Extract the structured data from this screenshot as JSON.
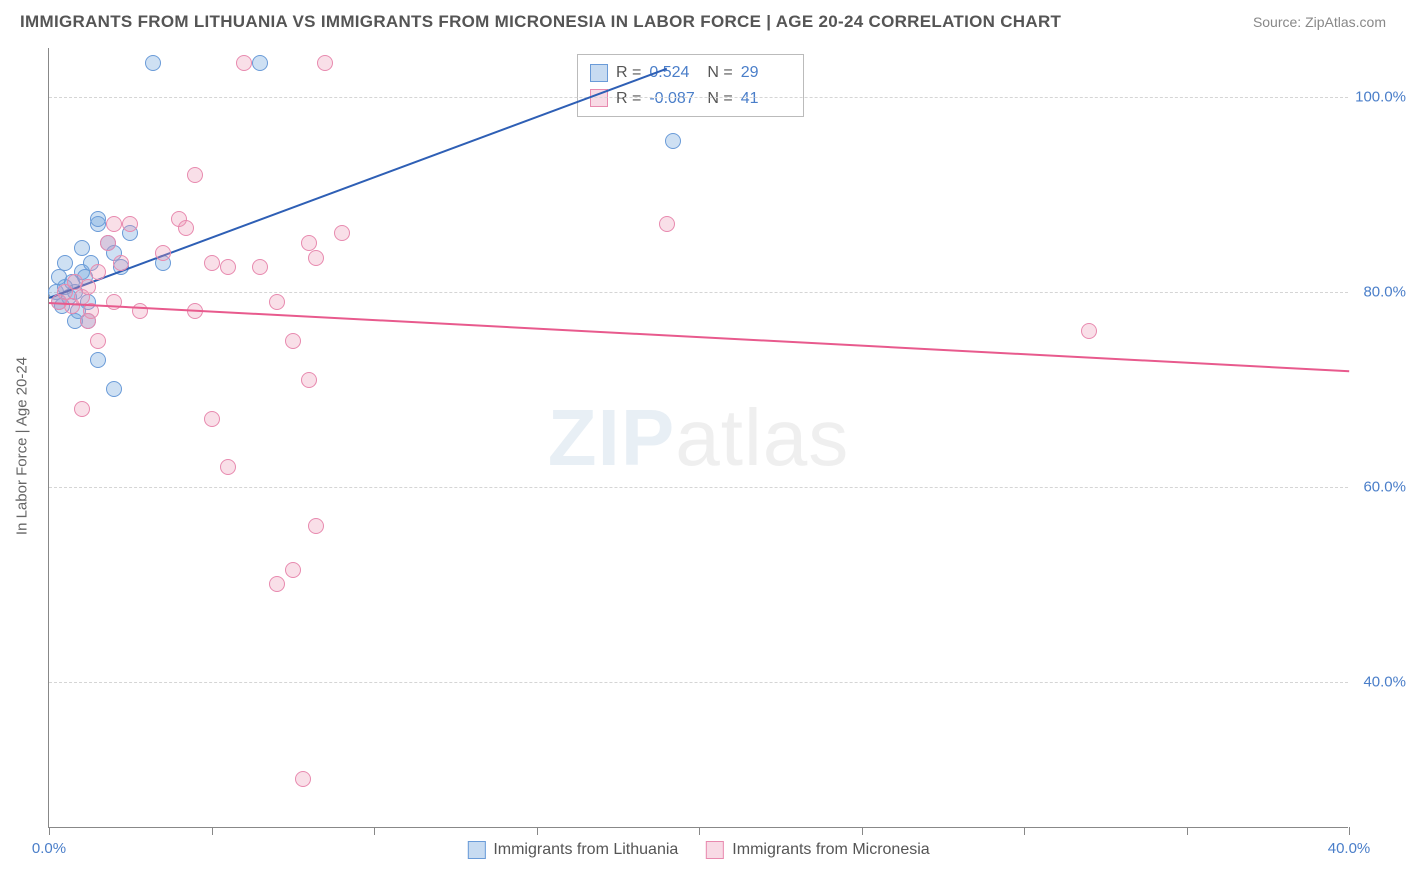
{
  "title": "IMMIGRANTS FROM LITHUANIA VS IMMIGRANTS FROM MICRONESIA IN LABOR FORCE | AGE 20-24 CORRELATION CHART",
  "source": "Source: ZipAtlas.com",
  "ylabel": "In Labor Force | Age 20-24",
  "watermark_a": "ZIP",
  "watermark_b": "atlas",
  "chart": {
    "type": "scatter",
    "background_color": "#ffffff",
    "grid_color": "#d5d5d5",
    "axis_color": "#888888",
    "xlim": [
      0,
      40
    ],
    "ylim": [
      25,
      105
    ],
    "ytick_step": 20,
    "yticks": [
      40,
      60,
      80,
      100
    ],
    "ytick_labels": [
      "40.0%",
      "60.0%",
      "80.0%",
      "100.0%"
    ],
    "xticks": [
      0,
      5,
      10,
      15,
      20,
      25,
      30,
      35,
      40
    ],
    "xtick_labels": [
      "0.0%",
      "",
      "",
      "",
      "",
      "",
      "",
      "",
      "40.0%"
    ],
    "marker_radius": 8,
    "series": [
      {
        "name": "Immigrants from Lithuania",
        "color": "#6a9bd8",
        "fill": "rgba(115,165,220,0.35)",
        "trend_color": "#2e5fb5",
        "R": "0.524",
        "N": "29",
        "trend": {
          "x1": 0,
          "y1": 79.5,
          "x2": 19,
          "y2": 103
        },
        "points": [
          [
            0.2,
            80
          ],
          [
            0.3,
            79
          ],
          [
            0.4,
            78.5
          ],
          [
            0.5,
            80.5
          ],
          [
            0.6,
            79.5
          ],
          [
            0.7,
            81
          ],
          [
            0.8,
            80
          ],
          [
            0.9,
            78
          ],
          [
            1.0,
            82
          ],
          [
            1.1,
            81.5
          ],
          [
            1.2,
            79
          ],
          [
            1.3,
            83
          ],
          [
            1.5,
            87
          ],
          [
            1.5,
            73
          ],
          [
            1.2,
            77
          ],
          [
            1.8,
            85
          ],
          [
            2.0,
            84
          ],
          [
            2.2,
            82.5
          ],
          [
            2.5,
            86
          ],
          [
            3.2,
            103.5
          ],
          [
            3.5,
            83
          ],
          [
            2.0,
            70
          ],
          [
            0.8,
            77
          ],
          [
            6.5,
            103.5
          ],
          [
            19.2,
            95.5
          ],
          [
            1.5,
            87.5
          ],
          [
            0.5,
            83
          ],
          [
            1.0,
            84.5
          ],
          [
            0.3,
            81.5
          ]
        ]
      },
      {
        "name": "Immigrants from Micronesia",
        "color": "#e88aaf",
        "fill": "rgba(235,150,180,0.3)",
        "trend_color": "#e85a8d",
        "R": "-0.087",
        "N": "41",
        "trend": {
          "x1": 0,
          "y1": 79,
          "x2": 40,
          "y2": 72
        },
        "points": [
          [
            0.3,
            79
          ],
          [
            0.5,
            80
          ],
          [
            0.7,
            78.5
          ],
          [
            0.8,
            81
          ],
          [
            1.0,
            79.5
          ],
          [
            1.2,
            80.5
          ],
          [
            1.3,
            78
          ],
          [
            1.5,
            82
          ],
          [
            1.8,
            85
          ],
          [
            2.0,
            79
          ],
          [
            2.2,
            83
          ],
          [
            2.5,
            87
          ],
          [
            2.8,
            78
          ],
          [
            1.0,
            68
          ],
          [
            1.5,
            75
          ],
          [
            3.5,
            84
          ],
          [
            4.0,
            87.5
          ],
          [
            4.2,
            86.5
          ],
          [
            4.5,
            78
          ],
          [
            4.5,
            92
          ],
          [
            5.0,
            83
          ],
          [
            5.5,
            82.5
          ],
          [
            6.0,
            103.5
          ],
          [
            6.5,
            82.5
          ],
          [
            7.0,
            79
          ],
          [
            7.5,
            75
          ],
          [
            8.0,
            85
          ],
          [
            8.2,
            83.5
          ],
          [
            8.5,
            103.5
          ],
          [
            8.0,
            71
          ],
          [
            9.0,
            86
          ],
          [
            5.0,
            67
          ],
          [
            5.5,
            62
          ],
          [
            8.2,
            56
          ],
          [
            7.5,
            51.5
          ],
          [
            7.0,
            50
          ],
          [
            7.8,
            30
          ],
          [
            19.0,
            87
          ],
          [
            32.0,
            76
          ],
          [
            2.0,
            87
          ],
          [
            1.2,
            77
          ]
        ]
      }
    ]
  },
  "stats_labels": {
    "R": "R =",
    "N": "N ="
  },
  "legend": [
    "Immigrants from Lithuania",
    "Immigrants from Micronesia"
  ]
}
